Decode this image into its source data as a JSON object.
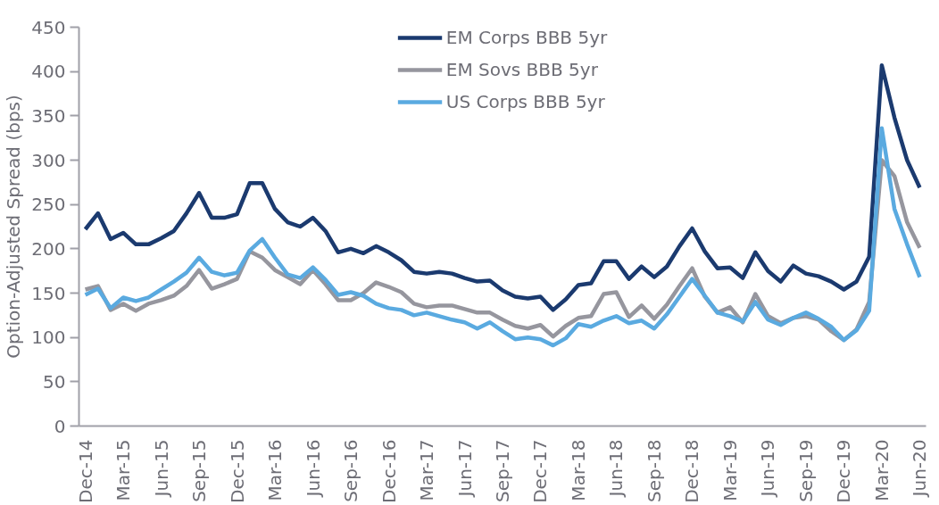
{
  "chart_data": {
    "type": "line",
    "ylabel": "Option-Adjusted Spread (bps)",
    "categories": [
      "Dec-14",
      null,
      null,
      "Mar-15",
      null,
      null,
      "Jun-15",
      null,
      null,
      "Sep-15",
      null,
      null,
      "Dec-15",
      null,
      null,
      "Mar-16",
      null,
      null,
      "Jun-16",
      null,
      null,
      "Sep-16",
      null,
      null,
      "Dec-16",
      null,
      null,
      "Mar-17",
      null,
      null,
      "Jun-17",
      null,
      null,
      "Sep-17",
      null,
      null,
      "Dec-17",
      null,
      null,
      "Mar-18",
      null,
      null,
      "Jun-18",
      null,
      null,
      "Sep-18",
      null,
      null,
      "Dec-18",
      null,
      null,
      "Mar-19",
      null,
      null,
      "Jun-19",
      null,
      null,
      "Sep-19",
      null,
      null,
      "Dec-19",
      null,
      null,
      "Mar-20",
      null,
      null,
      "Jun-20"
    ],
    "ylim": [
      0,
      450
    ],
    "yticks": [
      0,
      50,
      100,
      150,
      200,
      250,
      300,
      350,
      400,
      450
    ],
    "grid": false,
    "legend": "top",
    "line_style": "solid",
    "marker": "none",
    "series": [
      {
        "name": "EM Corps BBB 5yr",
        "color": "#1b3a6f",
        "values": [
          222,
          240,
          211,
          218,
          205,
          205,
          212,
          220,
          240,
          263,
          235,
          235,
          239,
          274,
          274,
          245,
          230,
          225,
          235,
          220,
          196,
          200,
          195,
          203,
          196,
          187,
          174,
          172,
          174,
          172,
          167,
          163,
          164,
          153,
          146,
          144,
          146,
          131,
          143,
          159,
          161,
          186,
          186,
          166,
          180,
          168,
          180,
          203,
          223,
          197,
          178,
          179,
          167,
          196,
          175,
          163,
          181,
          172,
          169,
          163,
          154,
          163,
          191,
          407,
          348,
          300,
          269
        ]
      },
      {
        "name": "EM Sovs BBB 5yr",
        "color": "#96969e",
        "values": [
          154,
          158,
          131,
          138,
          130,
          138,
          142,
          147,
          158,
          176,
          155,
          160,
          166,
          197,
          190,
          176,
          168,
          160,
          176,
          160,
          142,
          142,
          150,
          162,
          157,
          151,
          138,
          134,
          136,
          136,
          132,
          128,
          128,
          120,
          113,
          110,
          114,
          101,
          113,
          122,
          124,
          149,
          151,
          123,
          136,
          121,
          137,
          158,
          178,
          146,
          128,
          134,
          117,
          149,
          124,
          116,
          122,
          124,
          120,
          107,
          97,
          109,
          140,
          300,
          282,
          230,
          201
        ]
      },
      {
        "name": "US Corps BBB 5yr",
        "color": "#5aaae0",
        "values": [
          148,
          155,
          133,
          145,
          141,
          145,
          154,
          163,
          173,
          190,
          174,
          170,
          173,
          198,
          211,
          190,
          171,
          167,
          179,
          165,
          148,
          151,
          147,
          138,
          133,
          131,
          125,
          128,
          124,
          120,
          117,
          110,
          117,
          107,
          98,
          100,
          98,
          91,
          99,
          115,
          112,
          119,
          124,
          116,
          119,
          110,
          126,
          146,
          166,
          147,
          128,
          124,
          118,
          140,
          120,
          114,
          122,
          128,
          121,
          112,
          97,
          108,
          130,
          336,
          245,
          205,
          168
        ]
      }
    ]
  }
}
